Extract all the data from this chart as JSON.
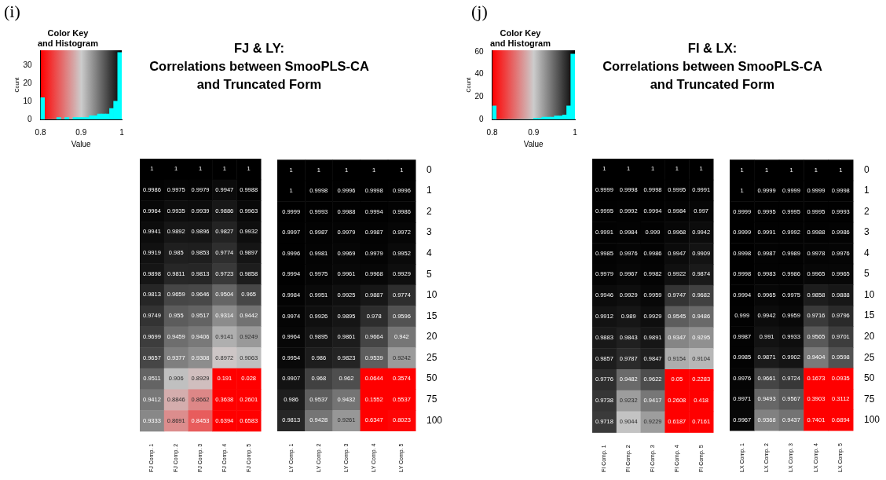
{
  "chart_data": [
    {
      "type": "histogram",
      "title": "Color Key\nand Histogram",
      "xlabel": "Value",
      "ylabel": "Count",
      "annotations": [
        "(i)"
      ],
      "color": "#00ffff",
      "bins": [
        0.8,
        0.81,
        0.82,
        0.83,
        0.84,
        0.85,
        0.86,
        0.87,
        0.88,
        0.89,
        0.9,
        0.91,
        0.92,
        0.93,
        0.94,
        0.95,
        0.96,
        0.97,
        0.98,
        0.99,
        1
      ],
      "values": [
        12,
        0,
        0,
        0,
        1,
        0,
        1,
        0,
        1,
        1,
        1,
        1,
        2,
        2,
        3,
        3,
        3,
        6,
        10,
        37
      ],
      "xlim": [
        0.8,
        1
      ],
      "xticks": [
        0.8,
        0.9,
        1
      ],
      "ylim": [
        0,
        38
      ],
      "yticks": [
        0,
        10,
        20,
        30
      ]
    },
    {
      "type": "heatmap",
      "title": "FJ & LY:\nCorrelations between SmooPLS-CA\nand Truncated Form",
      "data_labels": true,
      "categories": [
        "FJ Comp. 1",
        "FJ Comp. 2",
        "FJ Comp. 3",
        "FJ Comp. 4",
        "FJ Comp. 5"
      ],
      "y_categories": [
        null,
        null,
        null,
        null,
        null,
        null,
        null,
        null,
        null,
        null,
        null,
        null,
        null
      ],
      "cells": [
        [
          1,
          1,
          1,
          1,
          1
        ],
        [
          0.9986,
          0.9975,
          0.9979,
          0.9947,
          0.9988
        ],
        [
          0.9964,
          0.9935,
          0.9939,
          0.9886,
          0.9963
        ],
        [
          0.9941,
          0.9892,
          0.9896,
          0.9827,
          0.9932
        ],
        [
          0.9919,
          0.985,
          0.9853,
          0.9774,
          0.9897
        ],
        [
          0.9898,
          0.9811,
          0.9813,
          0.9723,
          0.9858
        ],
        [
          0.9813,
          0.9659,
          0.9646,
          0.9504,
          0.965
        ],
        [
          0.9749,
          0.955,
          0.9517,
          0.9314,
          0.9442
        ],
        [
          0.9699,
          0.9459,
          0.9406,
          0.9141,
          0.9249
        ],
        [
          0.9657,
          0.9377,
          0.9308,
          0.8972,
          0.9063
        ],
        [
          0.9511,
          0.906,
          0.8929,
          0.191,
          0.028
        ],
        [
          0.9412,
          0.8846,
          0.8662,
          0.3638,
          0.2601
        ],
        [
          0.9333,
          0.8691,
          0.8453,
          0.6394,
          0.6583
        ]
      ]
    },
    {
      "type": "heatmap",
      "data_labels": true,
      "categories": [
        "LY Comp. 1",
        "LY Comp. 2",
        "LY Comp. 3",
        "LY Comp. 4",
        "LY Comp. 5"
      ],
      "y_categories": [
        null,
        null,
        null,
        null,
        null,
        null,
        null,
        null,
        null,
        null,
        null,
        null,
        null
      ],
      "y2_categories": [
        "0",
        "1",
        "2",
        "3",
        "4",
        "5",
        "10",
        "15",
        "20",
        "25",
        "50",
        "75",
        "100"
      ],
      "cells": [
        [
          1,
          1,
          1,
          1,
          1
        ],
        [
          1,
          0.9998,
          0.9996,
          0.9998,
          0.9996
        ],
        [
          0.9999,
          0.9993,
          0.9988,
          0.9994,
          0.9986
        ],
        [
          0.9997,
          0.9987,
          0.9979,
          0.9987,
          0.9972
        ],
        [
          0.9996,
          0.9981,
          0.9969,
          0.9979,
          0.9952
        ],
        [
          0.9994,
          0.9975,
          0.9961,
          0.9968,
          0.9929
        ],
        [
          0.9984,
          0.9951,
          0.9925,
          0.9887,
          0.9774
        ],
        [
          0.9974,
          0.9926,
          0.9895,
          0.978,
          0.9596
        ],
        [
          0.9964,
          0.9895,
          0.9861,
          0.9664,
          0.942
        ],
        [
          0.9954,
          0.986,
          0.9823,
          0.9539,
          0.9242
        ],
        [
          0.9907,
          0.968,
          0.962,
          0.0644,
          0.3574
        ],
        [
          0.986,
          0.9537,
          0.9432,
          0.1552,
          0.5537
        ],
        [
          0.9813,
          0.9428,
          0.9261,
          0.6347,
          0.8023
        ]
      ]
    },
    {
      "type": "histogram",
      "title": "Color Key\nand Histogram",
      "xlabel": "Value",
      "ylabel": "Count",
      "annotations": [
        "(j)"
      ],
      "color": "#00ffff",
      "bins": [
        0.8,
        0.81,
        0.82,
        0.83,
        0.84,
        0.85,
        0.86,
        0.87,
        0.88,
        0.89,
        0.9,
        0.91,
        0.92,
        0.93,
        0.94,
        0.95,
        0.96,
        0.97,
        0.98,
        0.99,
        1
      ],
      "values": [
        12,
        0,
        0,
        0,
        0,
        0,
        0,
        0,
        0,
        0,
        1,
        1,
        2,
        2,
        2,
        3,
        3,
        4,
        12,
        58
      ],
      "xlim": [
        0.8,
        1
      ],
      "xticks": [
        0.8,
        0.9,
        1
      ],
      "ylim": [
        0,
        61
      ],
      "yticks": [
        0,
        20,
        40,
        60
      ]
    },
    {
      "type": "heatmap",
      "title": "FI & LX:\nCorrelations between SmooPLS-CA\nand Truncated Form",
      "data_labels": true,
      "categories": [
        "FI Comp. 1",
        "FI Comp. 2",
        "FI Comp. 3",
        "FI Comp. 4",
        "FI Comp. 5"
      ],
      "y_categories": [
        null,
        null,
        null,
        null,
        null,
        null,
        null,
        null,
        null,
        null,
        null,
        null,
        null
      ],
      "cells": [
        [
          1,
          1,
          1,
          1,
          1
        ],
        [
          0.9999,
          0.9998,
          0.9998,
          0.9995,
          0.9991
        ],
        [
          0.9995,
          0.9992,
          0.9994,
          0.9984,
          0.997
        ],
        [
          0.9991,
          0.9984,
          0.999,
          0.9968,
          0.9942
        ],
        [
          0.9985,
          0.9976,
          0.9986,
          0.9947,
          0.9909
        ],
        [
          0.9979,
          0.9967,
          0.9982,
          0.9922,
          0.9874
        ],
        [
          0.9946,
          0.9929,
          0.9959,
          0.9747,
          0.9682
        ],
        [
          0.9912,
          0.989,
          0.9929,
          0.9545,
          0.9486
        ],
        [
          0.9883,
          0.9843,
          0.9891,
          0.9347,
          0.9295
        ],
        [
          0.9857,
          0.9787,
          0.9847,
          0.9154,
          0.9104
        ],
        [
          0.9776,
          0.9482,
          0.9622,
          0.05,
          0.2283
        ],
        [
          0.9738,
          0.9232,
          0.9417,
          0.2608,
          0.418
        ],
        [
          0.9718,
          0.9044,
          0.9229,
          0.6187,
          0.7161
        ]
      ]
    },
    {
      "type": "heatmap",
      "data_labels": true,
      "categories": [
        "LX Comp. 1",
        "LX Comp. 2",
        "LX Comp. 3",
        "LX Comp. 4",
        "LX Comp. 5"
      ],
      "y_categories": [
        null,
        null,
        null,
        null,
        null,
        null,
        null,
        null,
        null,
        null,
        null,
        null,
        null
      ],
      "y2_categories": [
        "0",
        "1",
        "2",
        "3",
        "4",
        "5",
        "10",
        "15",
        "20",
        "25",
        "50",
        "75",
        "100"
      ],
      "cells": [
        [
          1,
          1,
          1,
          1,
          1
        ],
        [
          1,
          0.9999,
          0.9999,
          0.9999,
          0.9998
        ],
        [
          0.9999,
          0.9995,
          0.9995,
          0.9995,
          0.9993
        ],
        [
          0.9999,
          0.9991,
          0.9992,
          0.9988,
          0.9986
        ],
        [
          0.9998,
          0.9987,
          0.9989,
          0.9978,
          0.9976
        ],
        [
          0.9998,
          0.9983,
          0.9986,
          0.9965,
          0.9965
        ],
        [
          0.9994,
          0.9965,
          0.9975,
          0.9858,
          0.9888
        ],
        [
          0.999,
          0.9942,
          0.9959,
          0.9716,
          0.9796
        ],
        [
          0.9987,
          0.991,
          0.9933,
          0.9565,
          0.9701
        ],
        [
          0.9985,
          0.9871,
          0.9902,
          0.9404,
          0.9598
        ],
        [
          0.9976,
          0.9661,
          0.9724,
          0.1673,
          0.0935
        ],
        [
          0.9971,
          0.9493,
          0.9567,
          0.3903,
          0.3112
        ],
        [
          0.9967,
          0.9368,
          0.9437,
          0.7401,
          0.6894
        ]
      ]
    }
  ]
}
